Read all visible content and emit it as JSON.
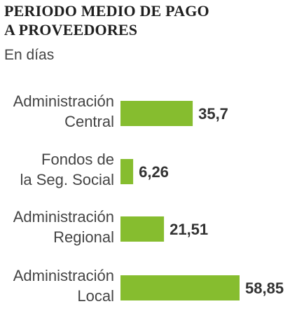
{
  "title_line1": "PERIODO MEDIO DE PAGO",
  "title_line2": "A PROVEEDORES",
  "subtitle": "En días",
  "colors": {
    "bar": "#86bd2f",
    "text": "#444444"
  },
  "chart_data": {
    "type": "bar",
    "orientation": "horizontal",
    "title": "PERIODO MEDIO DE PAGO A PROVEEDORES",
    "subtitle": "En días",
    "categories": [
      [
        "Administración",
        "Central"
      ],
      [
        "Fondos de",
        "la Seg. Social"
      ],
      [
        "Administración",
        "Regional"
      ],
      [
        "Administración",
        "Local"
      ]
    ],
    "values": [
      35.7,
      6.26,
      21.51,
      58.85
    ],
    "value_labels": [
      "35,7",
      "6,26",
      "21,51",
      "58,85"
    ],
    "xlim": [
      0,
      58.85
    ],
    "grid": false,
    "legend": "none"
  }
}
